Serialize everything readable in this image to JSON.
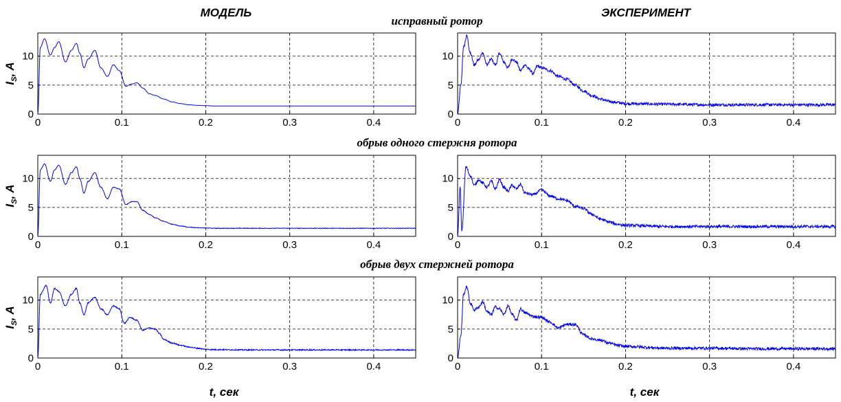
{
  "figure": {
    "col_titles": [
      "МОДЕЛЬ",
      "ЭКСПЕРИМЕНТ"
    ],
    "row_titles": [
      "исправный ротор",
      "обрыв одного стержня ротора",
      "обрыв двух стержней ротора"
    ],
    "xlabel": "t, сек",
    "ylabel_main": "I",
    "ylabel_sub": "S",
    "ylabel_rest": ", A"
  },
  "chart_data": [
    {
      "type": "line",
      "row": "исправный ротор",
      "col": "МОДЕЛЬ",
      "xlim": [
        0,
        0.45
      ],
      "ylim": [
        0,
        14
      ],
      "xticks": [
        "0",
        "0.1",
        "0.2",
        "0.3",
        "0.4"
      ],
      "yticks": [
        "0",
        "5",
        "10"
      ],
      "grid": true,
      "color": "#0000ee",
      "noise": 0,
      "x": [
        0,
        0.003,
        0.008,
        0.015,
        0.02,
        0.025,
        0.033,
        0.04,
        0.046,
        0.05,
        0.055,
        0.06,
        0.068,
        0.075,
        0.083,
        0.09,
        0.097,
        0.105,
        0.112,
        0.118,
        0.125,
        0.133,
        0.14,
        0.15,
        0.16,
        0.17,
        0.18,
        0.19,
        0.2,
        0.21,
        0.25,
        0.3,
        0.35,
        0.4,
        0.45
      ],
      "y": [
        0,
        11.5,
        13,
        10.2,
        11.5,
        12.5,
        9,
        11,
        12.2,
        10.5,
        8,
        9.5,
        11,
        8,
        6.5,
        8.5,
        7.5,
        4.8,
        5.2,
        5.4,
        4.5,
        3.5,
        3.2,
        2.6,
        2.1,
        1.8,
        1.6,
        1.5,
        1.45,
        1.4,
        1.4,
        1.4,
        1.4,
        1.4,
        1.4
      ]
    },
    {
      "type": "line",
      "row": "исправный ротор",
      "col": "ЭКСПЕРИМЕНТ",
      "xlim": [
        0,
        0.45
      ],
      "ylim": [
        0,
        14
      ],
      "xticks": [
        "0",
        "0.1",
        "0.2",
        "0.3",
        "0.4"
      ],
      "yticks": [
        "0",
        "5",
        "10"
      ],
      "grid": true,
      "color": "#0000ee",
      "noise": 0.25,
      "x": [
        0,
        0.004,
        0.007,
        0.011,
        0.015,
        0.02,
        0.025,
        0.03,
        0.035,
        0.04,
        0.045,
        0.05,
        0.055,
        0.06,
        0.065,
        0.07,
        0.075,
        0.08,
        0.085,
        0.09,
        0.095,
        0.1,
        0.11,
        0.12,
        0.13,
        0.14,
        0.15,
        0.16,
        0.17,
        0.18,
        0.19,
        0.2,
        0.25,
        0.3,
        0.35,
        0.4,
        0.45
      ],
      "y": [
        0,
        5,
        11.5,
        13.5,
        10.5,
        8.5,
        9.5,
        10.5,
        8.5,
        9.5,
        8.5,
        10.5,
        9,
        8,
        9.5,
        9,
        7.5,
        8.5,
        7.8,
        7,
        8.3,
        8,
        7.5,
        6.5,
        6,
        5,
        4,
        3.2,
        2.6,
        2.2,
        2,
        1.8,
        1.7,
        1.6,
        1.6,
        1.6,
        1.6
      ]
    },
    {
      "type": "line",
      "row": "обрыв одного стержня ротора",
      "col": "МОДЕЛЬ",
      "xlim": [
        0,
        0.45
      ],
      "ylim": [
        0,
        14
      ],
      "xticks": [
        "0",
        "0.1",
        "0.2",
        "0.3",
        "0.4"
      ],
      "yticks": [
        "0",
        "5",
        "10"
      ],
      "grid": true,
      "color": "#0000ee",
      "noise": 0.05,
      "x": [
        0,
        0.003,
        0.008,
        0.015,
        0.02,
        0.025,
        0.033,
        0.04,
        0.046,
        0.05,
        0.055,
        0.06,
        0.068,
        0.075,
        0.083,
        0.09,
        0.097,
        0.105,
        0.112,
        0.118,
        0.125,
        0.133,
        0.14,
        0.15,
        0.16,
        0.17,
        0.18,
        0.19,
        0.2,
        0.21,
        0.25,
        0.3,
        0.35,
        0.4,
        0.45
      ],
      "y": [
        0,
        11.5,
        12.5,
        9.5,
        11.5,
        12.3,
        9,
        11,
        12,
        10,
        7.5,
        9.5,
        11,
        8.5,
        6.5,
        8.5,
        8.2,
        5.5,
        6,
        6,
        4.5,
        3.8,
        3.2,
        2.6,
        2.1,
        1.8,
        1.6,
        1.5,
        1.45,
        1.4,
        1.4,
        1.4,
        1.4,
        1.4,
        1.4
      ]
    },
    {
      "type": "line",
      "row": "обрыв одного стержня ротора",
      "col": "ЭКСПЕРИМЕНТ",
      "xlim": [
        0,
        0.45
      ],
      "ylim": [
        0,
        14
      ],
      "xticks": [
        "0",
        "0.1",
        "0.2",
        "0.3",
        "0.4"
      ],
      "yticks": [
        "0",
        "5",
        "10"
      ],
      "grid": true,
      "color": "#0000ee",
      "noise": 0.25,
      "x": [
        0,
        0.003,
        0.005,
        0.01,
        0.015,
        0.02,
        0.025,
        0.03,
        0.035,
        0.04,
        0.045,
        0.05,
        0.055,
        0.06,
        0.065,
        0.07,
        0.075,
        0.08,
        0.09,
        0.1,
        0.11,
        0.12,
        0.13,
        0.14,
        0.15,
        0.16,
        0.17,
        0.18,
        0.19,
        0.2,
        0.25,
        0.3,
        0.35,
        0.4,
        0.45
      ],
      "y": [
        0,
        8.5,
        1,
        12,
        10.5,
        8.8,
        9.8,
        9.2,
        8.5,
        9.5,
        8.2,
        9.8,
        8.5,
        7.8,
        8.8,
        8.2,
        9,
        7.5,
        7.2,
        8,
        7,
        6.5,
        6.2,
        5.2,
        4.8,
        3.8,
        3,
        2.5,
        2.1,
        1.9,
        1.7,
        1.7,
        1.7,
        1.7,
        1.7
      ]
    },
    {
      "type": "line",
      "row": "обрыв двух стержней ротора",
      "col": "МОДЕЛЬ",
      "xlim": [
        0,
        0.45
      ],
      "ylim": [
        0,
        14
      ],
      "xticks": [
        "0",
        "0.1",
        "0.2",
        "0.3",
        "0.4"
      ],
      "yticks": [
        "0",
        "5",
        "10"
      ],
      "grid": true,
      "color": "#0000ee",
      "noise": 0.1,
      "x": [
        0,
        0.003,
        0.01,
        0.015,
        0.02,
        0.025,
        0.033,
        0.04,
        0.046,
        0.05,
        0.055,
        0.06,
        0.068,
        0.075,
        0.083,
        0.09,
        0.097,
        0.103,
        0.11,
        0.118,
        0.125,
        0.133,
        0.14,
        0.145,
        0.15,
        0.16,
        0.17,
        0.18,
        0.19,
        0.2,
        0.21,
        0.25,
        0.3,
        0.35,
        0.4,
        0.45
      ],
      "y": [
        0,
        11,
        12.5,
        9.5,
        12,
        11.5,
        9,
        11,
        12,
        9.5,
        7.5,
        9.5,
        10.5,
        8.5,
        7.5,
        9,
        8.5,
        6,
        7,
        6.5,
        4.8,
        5.2,
        5,
        4.2,
        3.2,
        2.6,
        2.2,
        1.9,
        1.7,
        1.5,
        1.45,
        1.4,
        1.4,
        1.4,
        1.4,
        1.4
      ]
    },
    {
      "type": "line",
      "row": "обрыв двух стержней ротора",
      "col": "ЭКСПЕРИМЕНТ",
      "xlim": [
        0,
        0.45
      ],
      "ylim": [
        0,
        14
      ],
      "xticks": [
        "0",
        "0.1",
        "0.2",
        "0.3",
        "0.4"
      ],
      "yticks": [
        "0",
        "5",
        "10"
      ],
      "grid": true,
      "color": "#0000ee",
      "noise": 0.25,
      "x": [
        0,
        0.004,
        0.007,
        0.011,
        0.015,
        0.02,
        0.025,
        0.03,
        0.035,
        0.04,
        0.045,
        0.05,
        0.055,
        0.06,
        0.065,
        0.07,
        0.075,
        0.08,
        0.09,
        0.1,
        0.11,
        0.12,
        0.13,
        0.14,
        0.15,
        0.16,
        0.17,
        0.18,
        0.19,
        0.2,
        0.25,
        0.3,
        0.35,
        0.4,
        0.45
      ],
      "y": [
        0,
        4,
        11,
        12.3,
        9.5,
        8.3,
        8.8,
        9.7,
        8,
        7.5,
        8.8,
        8.5,
        7.5,
        9,
        7.5,
        6.5,
        8.5,
        7.8,
        7.2,
        7,
        6.2,
        5.2,
        5.8,
        5.8,
        4,
        3.3,
        3.1,
        2.6,
        2.2,
        2,
        1.7,
        1.7,
        1.6,
        1.6,
        1.6
      ]
    }
  ]
}
